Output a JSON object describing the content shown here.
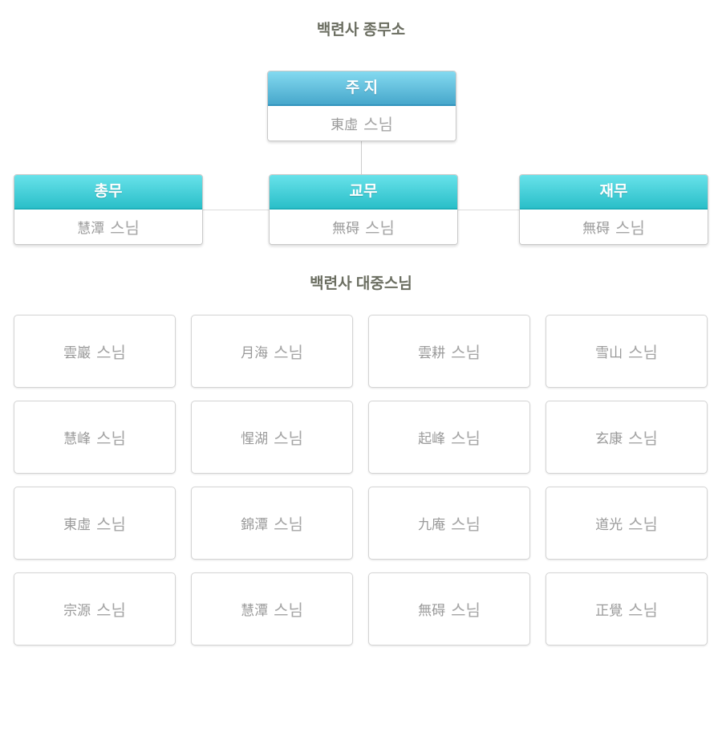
{
  "page": {
    "office_title": "백련사 종무소",
    "community_title": "백련사 대중스님"
  },
  "org": {
    "abbot": {
      "title": "주 지",
      "hanja": "東虛",
      "suffix": "스님"
    },
    "departments": [
      {
        "title": "총무",
        "hanja": "慧潭",
        "suffix": "스님"
      },
      {
        "title": "교무",
        "hanja": "無碍",
        "suffix": "스님"
      },
      {
        "title": "재무",
        "hanja": "無碍",
        "suffix": "스님"
      }
    ]
  },
  "monks": [
    {
      "hanja": "雲巖",
      "suffix": "스님"
    },
    {
      "hanja": "月海",
      "suffix": "스님"
    },
    {
      "hanja": "雲耕",
      "suffix": "스님"
    },
    {
      "hanja": "雪山",
      "suffix": "스님"
    },
    {
      "hanja": "慧峰",
      "suffix": "스님"
    },
    {
      "hanja": "惺湖",
      "suffix": "스님"
    },
    {
      "hanja": "起峰",
      "suffix": "스님"
    },
    {
      "hanja": "玄康",
      "suffix": "스님"
    },
    {
      "hanja": "東虛",
      "suffix": "스님"
    },
    {
      "hanja": "錦潭",
      "suffix": "스님"
    },
    {
      "hanja": "九庵",
      "suffix": "스님"
    },
    {
      "hanja": "道光",
      "suffix": "스님"
    },
    {
      "hanja": "宗源",
      "suffix": "스님"
    },
    {
      "hanja": "慧潭",
      "suffix": "스님"
    },
    {
      "hanja": "無碍",
      "suffix": "스님"
    },
    {
      "hanja": "正覺",
      "suffix": "스님"
    }
  ],
  "colors": {
    "abbot_header_top": "#84daf0",
    "abbot_header_bottom": "#47a7cb",
    "abbot_header_border": "#3294bd",
    "dept_header_top": "#68e2ea",
    "dept_header_bottom": "#2abfc9",
    "dept_header_border": "#1fb1bb",
    "title_text": "#6b6e61",
    "name_text": "#9a9a9a",
    "connector": "#cccccc"
  }
}
